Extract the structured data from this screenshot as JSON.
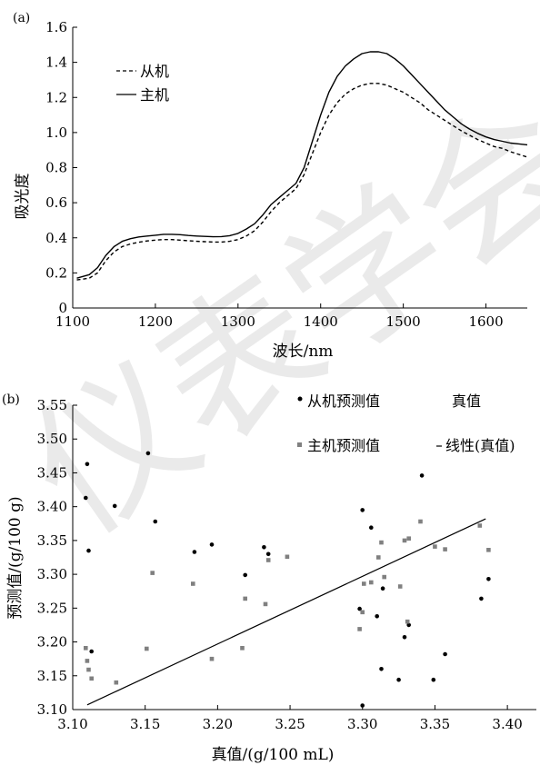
{
  "watermark": "仪表学会",
  "chart_data": [
    {
      "type": "line",
      "panel_label": "(a)",
      "xlabel": "波长/nm",
      "ylabel": "吸光度",
      "xlim": [
        1100,
        1650
      ],
      "ylim": [
        0,
        1.6
      ],
      "xticks": [
        "1100",
        "1200",
        "1300",
        "1400",
        "1500",
        "1600"
      ],
      "yticks": [
        "0",
        "0.2",
        "0.4",
        "0.6",
        "0.8",
        "1.0",
        "1.2",
        "1.4",
        "1.6"
      ],
      "legend_position": "top-left",
      "series": [
        {
          "name": "从机",
          "style": "dashed",
          "color": "#000000",
          "x": [
            1105,
            1120,
            1130,
            1140,
            1150,
            1160,
            1170,
            1180,
            1190,
            1200,
            1210,
            1220,
            1230,
            1240,
            1250,
            1260,
            1270,
            1280,
            1290,
            1300,
            1310,
            1320,
            1330,
            1340,
            1350,
            1360,
            1370,
            1380,
            1390,
            1400,
            1410,
            1420,
            1430,
            1440,
            1450,
            1460,
            1470,
            1480,
            1490,
            1500,
            1510,
            1520,
            1530,
            1540,
            1550,
            1560,
            1570,
            1580,
            1590,
            1600,
            1610,
            1620,
            1630,
            1640,
            1650
          ],
          "values": [
            0.16,
            0.17,
            0.2,
            0.27,
            0.32,
            0.35,
            0.365,
            0.375,
            0.382,
            0.387,
            0.39,
            0.39,
            0.387,
            0.383,
            0.38,
            0.378,
            0.376,
            0.376,
            0.38,
            0.39,
            0.41,
            0.44,
            0.49,
            0.55,
            0.6,
            0.64,
            0.68,
            0.76,
            0.88,
            1.0,
            1.1,
            1.17,
            1.22,
            1.25,
            1.27,
            1.28,
            1.28,
            1.27,
            1.25,
            1.23,
            1.2,
            1.17,
            1.13,
            1.1,
            1.07,
            1.04,
            1.01,
            0.985,
            0.96,
            0.94,
            0.92,
            0.91,
            0.89,
            0.875,
            0.86
          ]
        },
        {
          "name": "主机",
          "style": "solid",
          "color": "#000000",
          "x": [
            1105,
            1120,
            1130,
            1140,
            1150,
            1160,
            1170,
            1180,
            1190,
            1200,
            1210,
            1220,
            1230,
            1240,
            1250,
            1260,
            1270,
            1280,
            1290,
            1300,
            1310,
            1320,
            1330,
            1340,
            1350,
            1360,
            1370,
            1380,
            1390,
            1400,
            1410,
            1420,
            1430,
            1440,
            1450,
            1460,
            1470,
            1480,
            1490,
            1500,
            1510,
            1520,
            1530,
            1540,
            1550,
            1560,
            1570,
            1580,
            1590,
            1600,
            1610,
            1620,
            1630,
            1640,
            1650
          ],
          "values": [
            0.17,
            0.19,
            0.23,
            0.3,
            0.35,
            0.38,
            0.395,
            0.405,
            0.41,
            0.415,
            0.42,
            0.42,
            0.418,
            0.413,
            0.41,
            0.408,
            0.406,
            0.407,
            0.412,
            0.425,
            0.45,
            0.48,
            0.53,
            0.59,
            0.63,
            0.67,
            0.71,
            0.8,
            0.95,
            1.1,
            1.23,
            1.32,
            1.38,
            1.42,
            1.45,
            1.46,
            1.46,
            1.45,
            1.42,
            1.38,
            1.33,
            1.28,
            1.23,
            1.18,
            1.13,
            1.09,
            1.05,
            1.02,
            0.995,
            0.975,
            0.96,
            0.95,
            0.94,
            0.935,
            0.93
          ]
        }
      ]
    },
    {
      "type": "scatter",
      "panel_label": "(b)",
      "xlabel": "真值/(g/100 mL)",
      "ylabel": "预测值/(g/100 g)",
      "xlim": [
        3.1,
        3.42
      ],
      "ylim": [
        3.1,
        3.55
      ],
      "xticks": [
        "3.10",
        "3.15",
        "3.20",
        "3.25",
        "3.30",
        "3.35",
        "3.40"
      ],
      "yticks": [
        "3.10",
        "3.15",
        "3.20",
        "3.25",
        "3.30",
        "3.35",
        "3.40",
        "3.45",
        "3.50",
        "3.55"
      ],
      "legend_position": "top-right",
      "series": [
        {
          "name": "从机预测值",
          "marker": "circle",
          "color": "#000000",
          "points": [
            [
              3.11,
              3.463
            ],
            [
              3.109,
              3.413
            ],
            [
              3.111,
              3.335
            ],
            [
              3.113,
              3.186
            ],
            [
              3.129,
              3.401
            ],
            [
              3.152,
              3.479
            ],
            [
              3.157,
              3.378
            ],
            [
              3.184,
              3.333
            ],
            [
              3.196,
              3.344
            ],
            [
              3.219,
              3.299
            ],
            [
              3.232,
              3.34
            ],
            [
              3.235,
              3.33
            ],
            [
              3.298,
              3.249
            ],
            [
              3.3,
              3.395
            ],
            [
              3.306,
              3.369
            ],
            [
              3.31,
              3.238
            ],
            [
              3.313,
              3.16
            ],
            [
              3.314,
              3.279
            ],
            [
              3.325,
              3.144
            ],
            [
              3.329,
              3.207
            ],
            [
              3.332,
              3.225
            ],
            [
              3.341,
              3.446
            ],
            [
              3.349,
              3.144
            ],
            [
              3.357,
              3.182
            ],
            [
              3.382,
              3.264
            ],
            [
              3.387,
              3.293
            ],
            [
              3.3,
              3.106
            ]
          ]
        },
        {
          "name": "主机预测值",
          "marker": "square",
          "color": "#808080",
          "points": [
            [
              3.109,
              3.191
            ],
            [
              3.11,
              3.172
            ],
            [
              3.111,
              3.159
            ],
            [
              3.113,
              3.146
            ],
            [
              3.13,
              3.14
            ],
            [
              3.151,
              3.19
            ],
            [
              3.155,
              3.302
            ],
            [
              3.183,
              3.286
            ],
            [
              3.196,
              3.175
            ],
            [
              3.217,
              3.191
            ],
            [
              3.219,
              3.264
            ],
            [
              3.233,
              3.256
            ],
            [
              3.235,
              3.321
            ],
            [
              3.248,
              3.326
            ],
            [
              3.298,
              3.219
            ],
            [
              3.3,
              3.244
            ],
            [
              3.301,
              3.286
            ],
            [
              3.306,
              3.288
            ],
            [
              3.311,
              3.325
            ],
            [
              3.313,
              3.347
            ],
            [
              3.315,
              3.296
            ],
            [
              3.326,
              3.282
            ],
            [
              3.329,
              3.35
            ],
            [
              3.332,
              3.353
            ],
            [
              3.34,
              3.378
            ],
            [
              3.35,
              3.341
            ],
            [
              3.357,
              3.337
            ],
            [
              3.381,
              3.372
            ],
            [
              3.387,
              3.336
            ],
            [
              3.331,
              3.23
            ]
          ]
        },
        {
          "name": "真值",
          "marker": "none",
          "color": "#000000",
          "points": []
        },
        {
          "name": "线性(真值)",
          "style": "solid",
          "color": "#000000",
          "x": [
            3.11,
            3.385
          ],
          "values": [
            3.107,
            3.382
          ]
        }
      ]
    }
  ]
}
